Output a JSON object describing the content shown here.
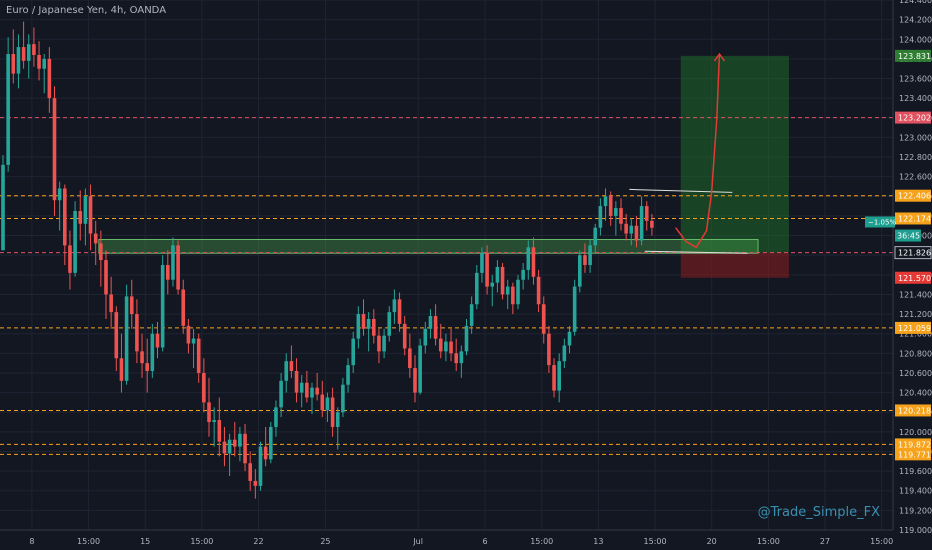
{
  "header": {
    "title": "Euro / Japanese Yen, 4h, OANDA"
  },
  "watermark": "@Trade_Simple_FX",
  "colors": {
    "background": "#131722",
    "grid": "#1f2433",
    "up": "#26a69a",
    "down": "#ef5350",
    "orange_line": "#f7a21b",
    "red_line": "#e05260",
    "zone": "#4caf50",
    "target_box": "#1b5e20",
    "stop_box": "#7f1d1d",
    "axis_text": "#b2b5be"
  },
  "chart_data": {
    "type": "candlestick",
    "symbol": "EURJPY",
    "timeframe": "4h",
    "ylim": [
      119.0,
      124.4
    ],
    "yticks": [
      119.0,
      119.2,
      119.4,
      119.6,
      119.8,
      120.0,
      120.2,
      120.4,
      120.6,
      120.8,
      121.0,
      121.2,
      121.4,
      121.6,
      121.8,
      122.0,
      122.2,
      122.4,
      122.6,
      122.8,
      123.0,
      123.2,
      123.4,
      123.6,
      123.8,
      124.0,
      124.2,
      124.4
    ],
    "ytick_labels": [
      "119.000",
      "119.200",
      "119.400",
      "119.600",
      "119.800",
      "120.000",
      "120.200",
      "120.400",
      "120.600",
      "120.800",
      "121.000",
      "121.200",
      "121.400",
      "121.600",
      "121.800",
      "122.000",
      "122.200",
      "122.400",
      "122.600",
      "122.800",
      "123.000",
      "123.200",
      "123.400",
      "123.600",
      "123.800",
      "124.000",
      "124.200",
      "124.400"
    ],
    "xticks": [
      {
        "i": 6,
        "label": "8"
      },
      {
        "i": 17,
        "label": "15:00"
      },
      {
        "i": 28,
        "label": "15"
      },
      {
        "i": 39,
        "label": "15:00"
      },
      {
        "i": 50,
        "label": "22"
      },
      {
        "i": 63,
        "label": "25"
      },
      {
        "i": 81,
        "label": "Jul"
      },
      {
        "i": 94,
        "label": "6"
      },
      {
        "i": 105,
        "label": "15:00"
      },
      {
        "i": 116,
        "label": "13"
      },
      {
        "i": 127,
        "label": "15:00"
      },
      {
        "i": 138,
        "label": "20"
      },
      {
        "i": 149,
        "label": "15:00"
      },
      {
        "i": 160,
        "label": "27"
      },
      {
        "i": 171,
        "label": "15:00"
      }
    ],
    "horizontal_levels": [
      {
        "price": 123.202,
        "label": "123.202",
        "style": "red"
      },
      {
        "price": 122.406,
        "label": "122.406",
        "style": "orange"
      },
      {
        "price": 122.174,
        "label": "122.174",
        "style": "orange"
      },
      {
        "price": 121.826,
        "label": "121.826",
        "style": "red"
      },
      {
        "price": 121.059,
        "label": "121.059",
        "style": "orange"
      },
      {
        "price": 120.218,
        "label": "120.218",
        "style": "orange"
      },
      {
        "price": 119.872,
        "label": "119.872",
        "style": "orange"
      },
      {
        "price": 119.771,
        "label": "119.771",
        "style": "orange"
      }
    ],
    "price_tags": [
      {
        "price": 123.831,
        "label": "123.831",
        "color": "#2e7d32"
      },
      {
        "price": 123.202,
        "label": "123.202",
        "color": "#e05260"
      },
      {
        "price": 122.406,
        "label": "122.406",
        "color": "#f7a21b"
      },
      {
        "price": 122.174,
        "label": "122.174",
        "color": "#f7a21b"
      },
      {
        "price": 121.826,
        "label": "121.826",
        "color": "#131722",
        "text_color": "#ffffff"
      },
      {
        "price": 121.57,
        "label": "121.570",
        "color": "#e53935"
      },
      {
        "price": 121.059,
        "label": "121.059",
        "color": "#f7a21b"
      },
      {
        "price": 120.218,
        "label": "120.218",
        "color": "#f7a21b"
      },
      {
        "price": 119.872,
        "label": "119.872",
        "color": "#f7a21b"
      },
      {
        "price": 119.771,
        "label": "119.771",
        "color": "#f7a21b"
      }
    ],
    "current_price_badge": {
      "change": "−1.05%",
      "countdown": "36:45",
      "price": 122.0
    },
    "support_zone": {
      "i_start": 19,
      "i_end": 147,
      "low": 121.82,
      "high": 121.96
    },
    "long_position": {
      "i_start": 132,
      "i_end": 153,
      "entry": 121.826,
      "target": 123.831,
      "stop": 121.57
    },
    "triangle_top": {
      "i1": 122,
      "p1": 122.47,
      "i2": 142,
      "p2": 122.44
    },
    "triangle_bottom": {
      "i1": 125,
      "p1": 121.84,
      "i2": 145,
      "p2": 121.82
    },
    "projection_path": [
      [
        131,
        122.08
      ],
      [
        133,
        121.94
      ],
      [
        135,
        121.88
      ],
      [
        137,
        122.05
      ],
      [
        138,
        122.45
      ],
      [
        139,
        123.2
      ],
      [
        139.5,
        123.85
      ]
    ],
    "candles": [
      [
        121.85,
        122.82,
        121.85,
        122.72
      ],
      [
        122.72,
        124.02,
        122.65,
        123.85
      ],
      [
        123.85,
        124.1,
        123.55,
        123.65
      ],
      [
        123.65,
        124.05,
        123.5,
        123.92
      ],
      [
        123.92,
        124.18,
        123.7,
        123.78
      ],
      [
        123.78,
        124.05,
        123.6,
        123.95
      ],
      [
        123.95,
        124.12,
        123.72,
        123.84
      ],
      [
        123.84,
        123.98,
        123.58,
        123.7
      ],
      [
        123.7,
        123.85,
        123.45,
        123.8
      ],
      [
        123.8,
        123.92,
        123.25,
        123.4
      ],
      [
        123.4,
        123.52,
        122.2,
        122.36
      ],
      [
        122.36,
        122.55,
        122.05,
        122.48
      ],
      [
        122.48,
        122.52,
        121.7,
        121.9
      ],
      [
        121.9,
        122.05,
        121.45,
        121.62
      ],
      [
        121.62,
        122.35,
        121.58,
        122.25
      ],
      [
        122.25,
        122.46,
        121.95,
        122.12
      ],
      [
        122.12,
        122.48,
        121.9,
        122.4
      ],
      [
        122.4,
        122.52,
        121.85,
        122.02
      ],
      [
        122.02,
        122.15,
        121.7,
        121.92
      ],
      [
        121.92,
        122.05,
        121.48,
        121.75
      ],
      [
        121.75,
        121.85,
        121.15,
        121.4
      ],
      [
        121.4,
        121.58,
        121.05,
        121.22
      ],
      [
        121.22,
        121.28,
        120.62,
        120.75
      ],
      [
        120.75,
        121.0,
        120.4,
        120.52
      ],
      [
        120.52,
        121.5,
        120.48,
        121.38
      ],
      [
        121.38,
        121.55,
        121.05,
        121.2
      ],
      [
        121.2,
        121.35,
        120.7,
        120.82
      ],
      [
        120.82,
        121.0,
        120.55,
        120.7
      ],
      [
        120.7,
        120.95,
        120.4,
        120.62
      ],
      [
        120.62,
        121.1,
        120.55,
        121.0
      ],
      [
        121.0,
        121.12,
        120.75,
        120.86
      ],
      [
        120.86,
        121.8,
        120.82,
        121.7
      ],
      [
        121.7,
        121.85,
        121.4,
        121.55
      ],
      [
        121.55,
        121.98,
        121.48,
        121.9
      ],
      [
        121.9,
        121.95,
        121.4,
        121.45
      ],
      [
        121.45,
        121.55,
        121.0,
        121.08
      ],
      [
        121.08,
        121.15,
        120.8,
        120.9
      ],
      [
        120.9,
        121.05,
        120.65,
        120.95
      ],
      [
        120.95,
        121.0,
        120.5,
        120.6
      ],
      [
        120.6,
        120.75,
        120.2,
        120.3
      ],
      [
        120.3,
        120.55,
        119.95,
        120.1
      ],
      [
        120.1,
        120.25,
        119.85,
        120.12
      ],
      [
        120.12,
        120.35,
        119.75,
        119.9
      ],
      [
        119.9,
        120.05,
        119.65,
        119.78
      ],
      [
        119.78,
        119.98,
        119.55,
        119.92
      ],
      [
        119.92,
        120.1,
        119.75,
        119.85
      ],
      [
        119.85,
        120.05,
        119.7,
        119.98
      ],
      [
        119.98,
        120.08,
        119.6,
        119.68
      ],
      [
        119.68,
        119.8,
        119.4,
        119.5
      ],
      [
        119.5,
        119.62,
        119.32,
        119.45
      ],
      [
        119.45,
        119.9,
        119.4,
        119.85
      ],
      [
        119.85,
        120.05,
        119.65,
        119.72
      ],
      [
        119.72,
        120.1,
        119.68,
        120.05
      ],
      [
        120.05,
        120.32,
        119.95,
        120.25
      ],
      [
        120.25,
        120.6,
        120.15,
        120.52
      ],
      [
        120.52,
        120.8,
        120.4,
        120.72
      ],
      [
        120.72,
        120.88,
        120.55,
        120.62
      ],
      [
        120.62,
        120.75,
        120.3,
        120.4
      ],
      [
        120.4,
        120.58,
        120.25,
        120.5
      ],
      [
        120.5,
        120.62,
        120.3,
        120.35
      ],
      [
        120.35,
        120.5,
        120.18,
        120.45
      ],
      [
        120.45,
        120.6,
        120.32,
        120.38
      ],
      [
        120.38,
        120.52,
        120.15,
        120.22
      ],
      [
        120.22,
        120.4,
        120.1,
        120.35
      ],
      [
        120.35,
        120.45,
        119.95,
        120.05
      ],
      [
        120.05,
        120.25,
        119.82,
        120.2
      ],
      [
        120.2,
        120.55,
        120.15,
        120.48
      ],
      [
        120.48,
        120.75,
        120.4,
        120.68
      ],
      [
        120.68,
        121.02,
        120.6,
        120.95
      ],
      [
        120.95,
        121.28,
        120.85,
        121.2
      ],
      [
        121.2,
        121.35,
        120.98,
        121.05
      ],
      [
        121.05,
        121.22,
        120.82,
        121.15
      ],
      [
        121.15,
        121.25,
        120.9,
        120.98
      ],
      [
        120.98,
        121.05,
        120.7,
        120.82
      ],
      [
        120.82,
        121.05,
        120.75,
        120.98
      ],
      [
        120.98,
        121.28,
        120.92,
        121.22
      ],
      [
        121.22,
        121.45,
        121.1,
        121.35
      ],
      [
        121.35,
        121.42,
        121.02,
        121.1
      ],
      [
        121.1,
        121.18,
        120.78,
        120.85
      ],
      [
        120.85,
        121.0,
        120.55,
        120.65
      ],
      [
        120.65,
        120.78,
        120.3,
        120.4
      ],
      [
        120.4,
        120.95,
        120.38,
        120.88
      ],
      [
        120.88,
        121.12,
        120.8,
        121.05
      ],
      [
        121.05,
        121.25,
        120.95,
        121.18
      ],
      [
        121.18,
        121.3,
        120.88,
        120.95
      ],
      [
        120.95,
        121.1,
        120.75,
        120.82
      ],
      [
        120.82,
        121.0,
        120.72,
        120.92
      ],
      [
        120.92,
        121.05,
        120.72,
        120.8
      ],
      [
        120.8,
        120.95,
        120.62,
        120.7
      ],
      [
        120.7,
        120.88,
        120.55,
        120.82
      ],
      [
        120.82,
        121.15,
        120.78,
        121.08
      ],
      [
        121.08,
        121.38,
        121.0,
        121.3
      ],
      [
        121.3,
        121.7,
        121.25,
        121.62
      ],
      [
        121.62,
        121.88,
        121.52,
        121.82
      ],
      [
        121.82,
        121.9,
        121.4,
        121.48
      ],
      [
        121.48,
        121.6,
        121.28,
        121.52
      ],
      [
        121.52,
        121.75,
        121.42,
        121.68
      ],
      [
        121.68,
        121.72,
        121.35,
        121.4
      ],
      [
        121.4,
        121.55,
        121.25,
        121.48
      ],
      [
        121.48,
        121.52,
        121.2,
        121.3
      ],
      [
        121.3,
        121.6,
        121.25,
        121.55
      ],
      [
        121.55,
        121.72,
        121.45,
        121.65
      ],
      [
        121.65,
        121.95,
        121.55,
        121.88
      ],
      [
        121.88,
        121.98,
        121.5,
        121.58
      ],
      [
        121.58,
        121.65,
        121.22,
        121.3
      ],
      [
        121.3,
        121.38,
        120.9,
        121.0
      ],
      [
        121.0,
        121.08,
        120.6,
        120.68
      ],
      [
        120.68,
        120.75,
        120.35,
        120.42
      ],
      [
        120.42,
        120.8,
        120.3,
        120.72
      ],
      [
        120.72,
        120.95,
        120.65,
        120.88
      ],
      [
        120.88,
        121.08,
        120.8,
        121.02
      ],
      [
        121.02,
        121.55,
        120.98,
        121.48
      ],
      [
        121.48,
        121.85,
        121.42,
        121.8
      ],
      [
        121.8,
        121.92,
        121.62,
        121.7
      ],
      [
        121.7,
        121.96,
        121.62,
        121.9
      ],
      [
        121.9,
        122.12,
        121.82,
        122.08
      ],
      [
        122.08,
        122.38,
        122.0,
        122.3
      ],
      [
        122.3,
        122.48,
        122.15,
        122.4
      ],
      [
        122.4,
        122.45,
        122.1,
        122.2
      ],
      [
        122.2,
        122.35,
        122.0,
        122.28
      ],
      [
        122.28,
        122.38,
        122.05,
        122.12
      ],
      [
        122.12,
        122.22,
        121.95,
        122.02
      ],
      [
        122.02,
        122.18,
        121.9,
        122.1
      ],
      [
        122.1,
        122.2,
        121.88,
        121.95
      ],
      [
        121.95,
        122.4,
        121.9,
        122.3
      ],
      [
        122.3,
        122.35,
        122.05,
        122.15
      ],
      [
        122.15,
        122.22,
        122.0,
        122.08
      ]
    ]
  }
}
